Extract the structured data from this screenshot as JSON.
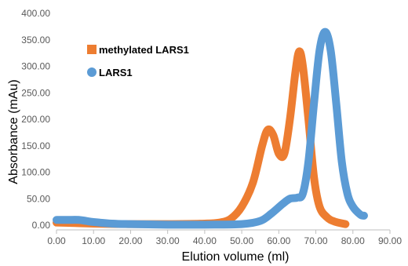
{
  "chart_data": {
    "type": "line",
    "title": "",
    "xlabel": "Elution volume (ml)",
    "ylabel": "Absorbance (mAu)",
    "xlim": [
      0,
      90
    ],
    "ylim": [
      0,
      400
    ],
    "x_ticks": [
      "0.00",
      "10.00",
      "20.00",
      "30.00",
      "40.00",
      "50.00",
      "60.00",
      "70.00",
      "80.00",
      "90.00"
    ],
    "y_ticks": [
      "0.00",
      "50.00",
      "100.00",
      "150.00",
      "200.00",
      "250.00",
      "300.00",
      "350.00",
      "400.00"
    ],
    "grid": false,
    "legend_position": "top-left",
    "series": [
      {
        "name": "methylated LARS1",
        "color": "#ED7D31",
        "points": [
          [
            0,
            5
          ],
          [
            5,
            4
          ],
          [
            10,
            3
          ],
          [
            20,
            2
          ],
          [
            30,
            2
          ],
          [
            40,
            3
          ],
          [
            44,
            5
          ],
          [
            47,
            12
          ],
          [
            50,
            35
          ],
          [
            53,
            80
          ],
          [
            55.5,
            150
          ],
          [
            57,
            180
          ],
          [
            58.5,
            170
          ],
          [
            60,
            135
          ],
          [
            61.5,
            135
          ],
          [
            63,
            200
          ],
          [
            64.5,
            290
          ],
          [
            65.5,
            328
          ],
          [
            66.5,
            300
          ],
          [
            68,
            200
          ],
          [
            69.5,
            90
          ],
          [
            71,
            35
          ],
          [
            73,
            15
          ],
          [
            75,
            7
          ],
          [
            78,
            2
          ]
        ]
      },
      {
        "name": "LARS1",
        "color": "#5B9BD5",
        "points": [
          [
            0,
            10
          ],
          [
            3,
            10
          ],
          [
            6,
            10
          ],
          [
            8,
            8
          ],
          [
            10,
            6
          ],
          [
            15,
            3
          ],
          [
            20,
            2
          ],
          [
            30,
            1
          ],
          [
            40,
            1
          ],
          [
            50,
            2
          ],
          [
            55,
            8
          ],
          [
            58,
            22
          ],
          [
            61,
            40
          ],
          [
            63,
            50
          ],
          [
            65,
            52
          ],
          [
            66.5,
            60
          ],
          [
            68,
            120
          ],
          [
            69.5,
            230
          ],
          [
            71,
            330
          ],
          [
            72.5,
            365
          ],
          [
            74,
            330
          ],
          [
            75.5,
            230
          ],
          [
            77,
            120
          ],
          [
            78.5,
            60
          ],
          [
            80,
            35
          ],
          [
            82,
            20
          ],
          [
            83,
            18
          ]
        ]
      }
    ]
  }
}
